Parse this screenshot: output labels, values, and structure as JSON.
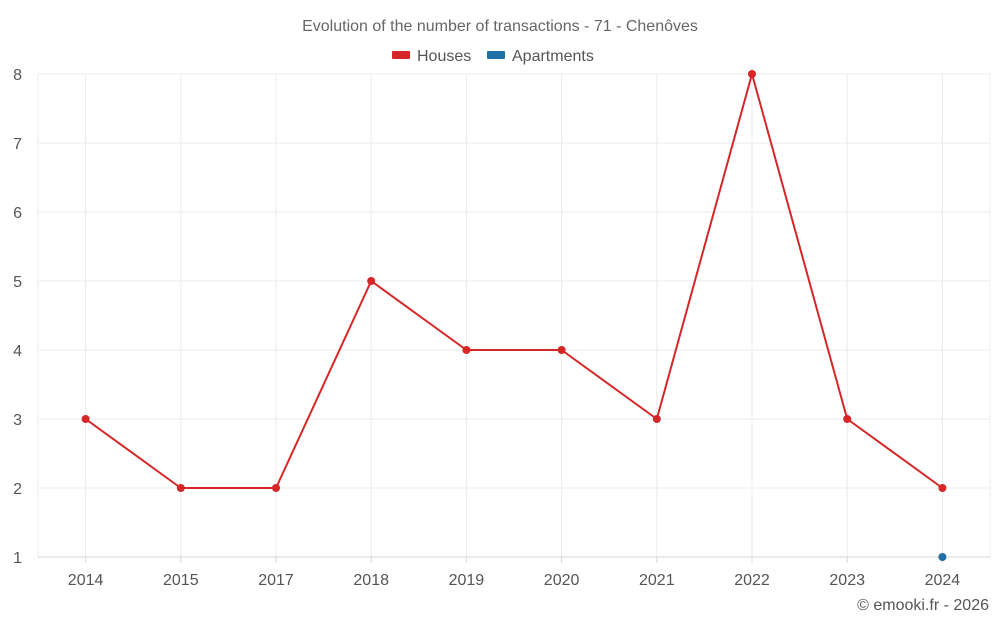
{
  "chart_data": {
    "type": "line",
    "title": "Evolution of the number of transactions - 71 - Chenôves",
    "xlabel": "",
    "ylabel": "",
    "categories": [
      "2014",
      "2015",
      "2017",
      "2018",
      "2019",
      "2020",
      "2021",
      "2022",
      "2023",
      "2024"
    ],
    "ylim": [
      1,
      8
    ],
    "yticks": [
      1,
      2,
      3,
      4,
      5,
      6,
      7,
      8
    ],
    "grid": true,
    "legend_position": "top-center",
    "series": [
      {
        "name": "Houses",
        "color": "#d62728",
        "values": [
          3,
          2,
          2,
          5,
          4,
          4,
          3,
          8,
          3,
          2
        ]
      },
      {
        "name": "Apartments",
        "color": "#1f6fa5",
        "values": [
          null,
          null,
          null,
          null,
          null,
          null,
          null,
          null,
          null,
          1
        ]
      }
    ]
  },
  "footer": {
    "copyright": "© emooki.fr - 2026"
  }
}
